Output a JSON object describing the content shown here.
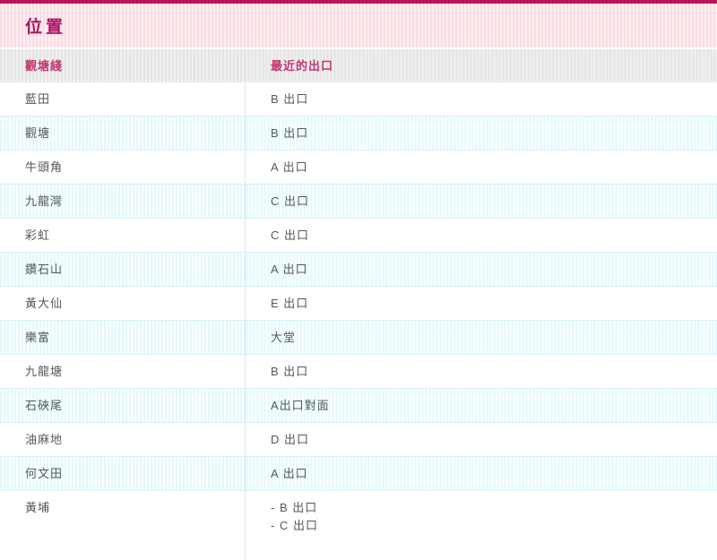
{
  "section": {
    "title": "位置"
  },
  "table": {
    "columns": [
      {
        "label": "觀塘綫"
      },
      {
        "label": "最近的出口"
      }
    ],
    "rows": [
      {
        "station": "藍田",
        "exit_lines": [
          "B 出口"
        ]
      },
      {
        "station": "觀塘",
        "exit_lines": [
          "B 出口"
        ]
      },
      {
        "station": "牛頭角",
        "exit_lines": [
          "A 出口"
        ]
      },
      {
        "station": "九龍灣",
        "exit_lines": [
          "C 出口"
        ]
      },
      {
        "station": "彩虹",
        "exit_lines": [
          "C 出口"
        ]
      },
      {
        "station": "鑽石山",
        "exit_lines": [
          "A 出口"
        ]
      },
      {
        "station": "黃大仙",
        "exit_lines": [
          "E 出口"
        ]
      },
      {
        "station": "樂富",
        "exit_lines": [
          "大堂"
        ]
      },
      {
        "station": "九龍塘",
        "exit_lines": [
          "B 出口"
        ]
      },
      {
        "station": "石硤尾",
        "exit_lines": [
          "A出口對面"
        ]
      },
      {
        "station": "油麻地",
        "exit_lines": [
          "D 出口"
        ]
      },
      {
        "station": "何文田",
        "exit_lines": [
          "A 出口"
        ]
      },
      {
        "station": "黃埔",
        "exit_lines": [
          "- B 出口",
          "- C 出口"
        ]
      }
    ]
  },
  "colors": {
    "top_accent_bar": "#c2155e",
    "title_band_pink": "#fbdce3",
    "title_text": "#b31060",
    "header_band_gray": "#e4e4e4",
    "header_text": "#c23572",
    "zebra_cyan_stripe": "#e2f9fc",
    "cell_text": "#54585d",
    "divider_cyan": "#cdeef3"
  }
}
